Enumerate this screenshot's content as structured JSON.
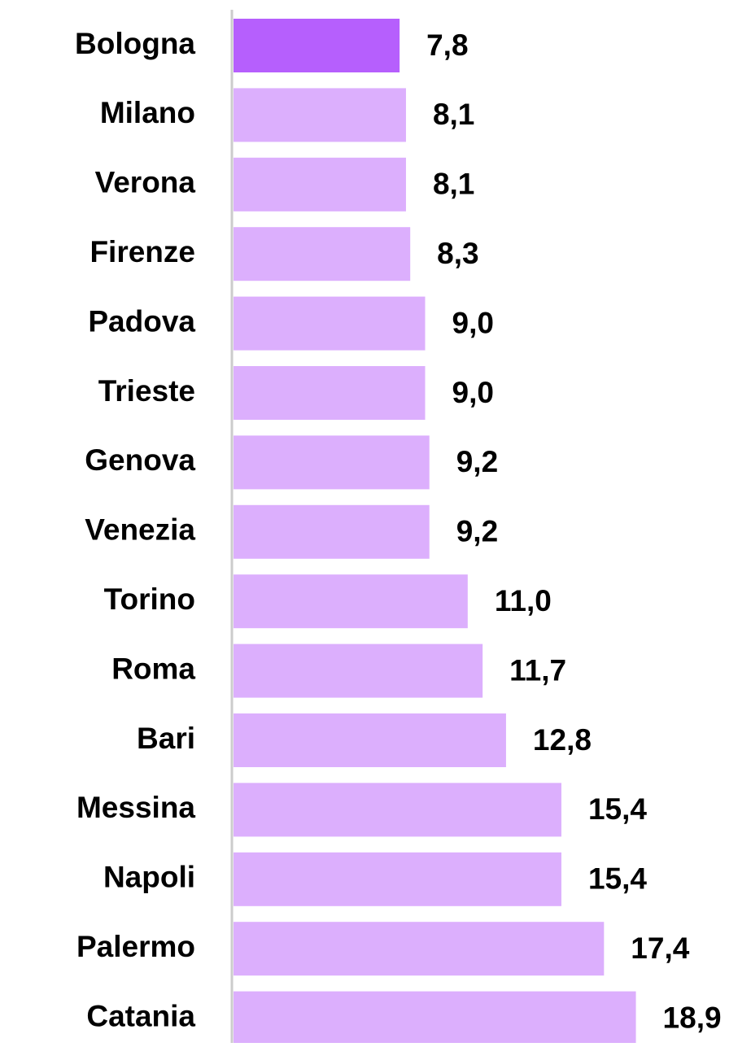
{
  "chart_data": {
    "type": "bar",
    "orientation": "horizontal",
    "categories": [
      "Bologna",
      "Milano",
      "Verona",
      "Firenze",
      "Padova",
      "Trieste",
      "Genova",
      "Venezia",
      "Torino",
      "Roma",
      "Bari",
      "Messina",
      "Napoli",
      "Palermo",
      "Catania"
    ],
    "values": [
      7.8,
      8.1,
      8.1,
      8.3,
      9.0,
      9.0,
      9.2,
      9.2,
      11.0,
      11.7,
      12.8,
      15.4,
      15.4,
      17.4,
      18.9
    ],
    "value_labels": [
      "7,8",
      "8,1",
      "8,1",
      "8,3",
      "9,0",
      "9,0",
      "9,2",
      "9,2",
      "11,0",
      "11,7",
      "12,8",
      "15,4",
      "15,4",
      "17,4",
      "18,9"
    ],
    "colors": [
      "#b65ffd",
      "#dcaffd",
      "#dcaffd",
      "#dcaffd",
      "#dcaffd",
      "#dcaffd",
      "#dcaffd",
      "#dcaffd",
      "#dcaffd",
      "#dcaffd",
      "#dcaffd",
      "#dcaffd",
      "#dcaffd",
      "#dcaffd",
      "#dcaffd"
    ],
    "xlim": [
      0,
      24
    ]
  }
}
